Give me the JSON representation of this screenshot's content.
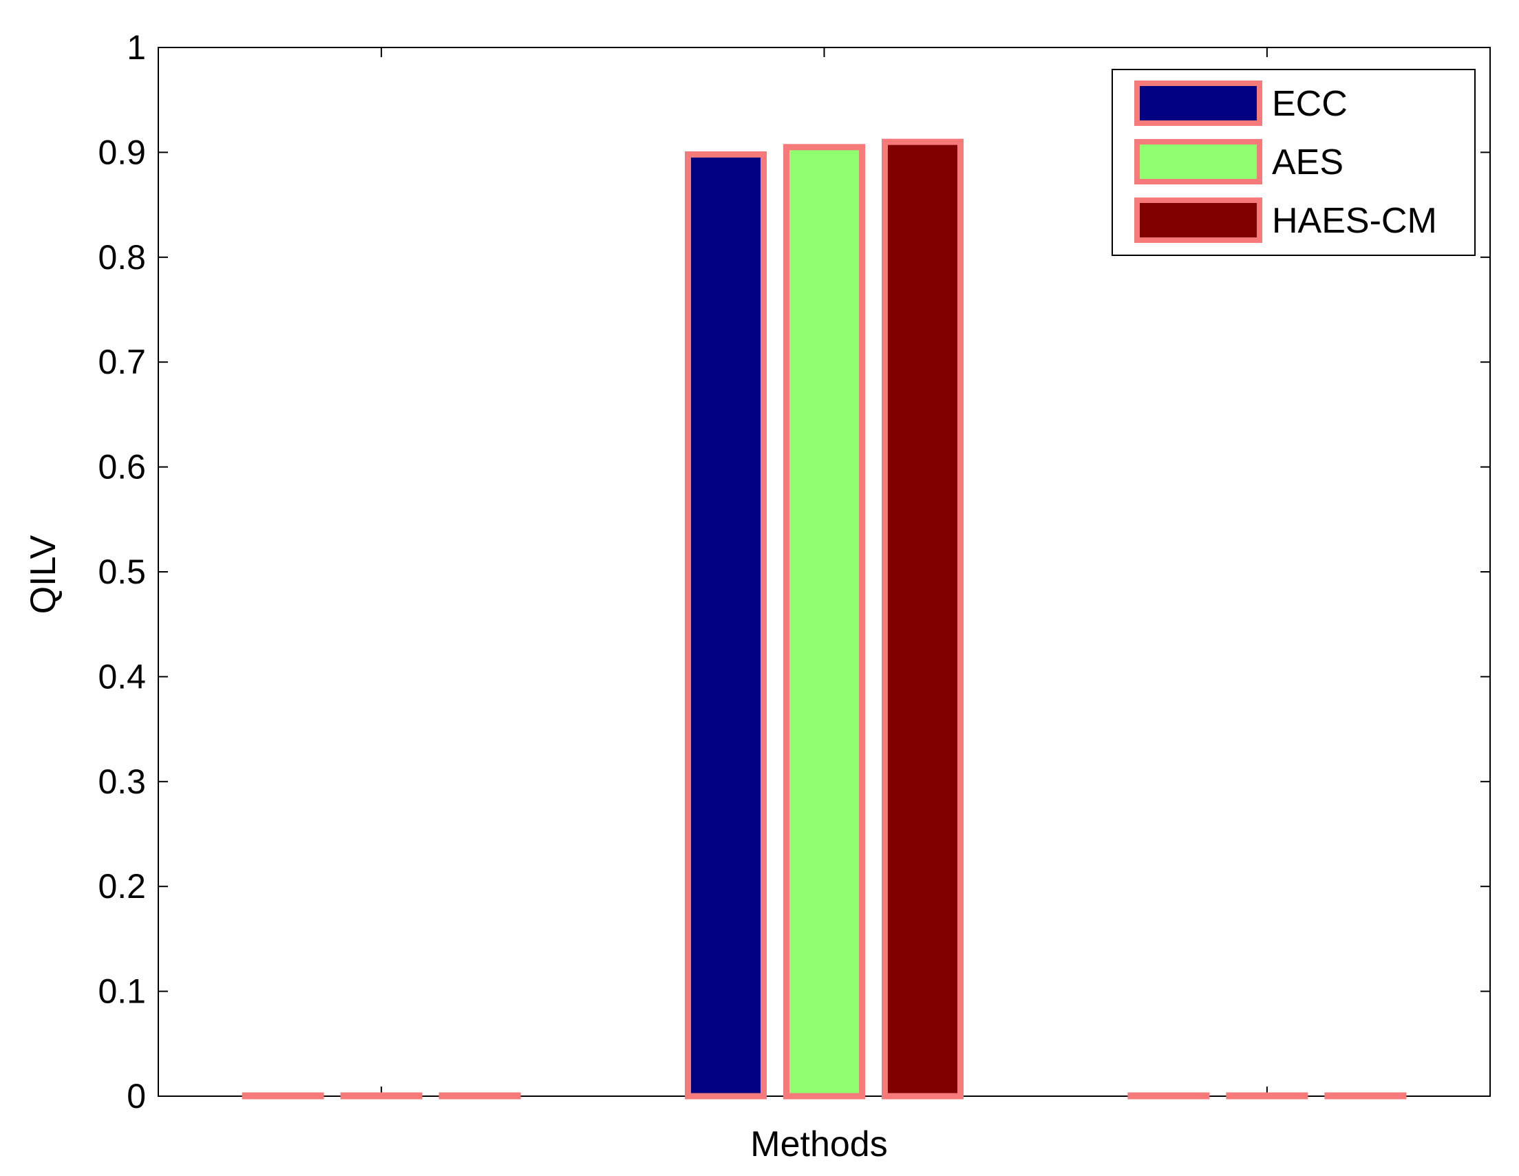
{
  "chart_data": {
    "type": "bar",
    "title": "",
    "xlabel": "Methods",
    "ylabel": "QILV",
    "ylim": [
      0,
      1
    ],
    "yticks": [
      "0",
      "0.1",
      "0.2",
      "0.3",
      "0.4",
      "0.5",
      "0.6",
      "0.7",
      "0.8",
      "0.9",
      "1"
    ],
    "groups": 3,
    "series": [
      {
        "name": "ECC",
        "color": "#000080",
        "values": [
          0,
          0.898,
          0
        ]
      },
      {
        "name": "AES",
        "color": "#8fff6f",
        "values": [
          0,
          0.905,
          0
        ]
      },
      {
        "name": "HAES-CM",
        "color": "#800000",
        "values": [
          0,
          0.91,
          0
        ]
      }
    ],
    "edge_color": "#f77a7a",
    "grid": false,
    "legend_position": "top-right"
  }
}
